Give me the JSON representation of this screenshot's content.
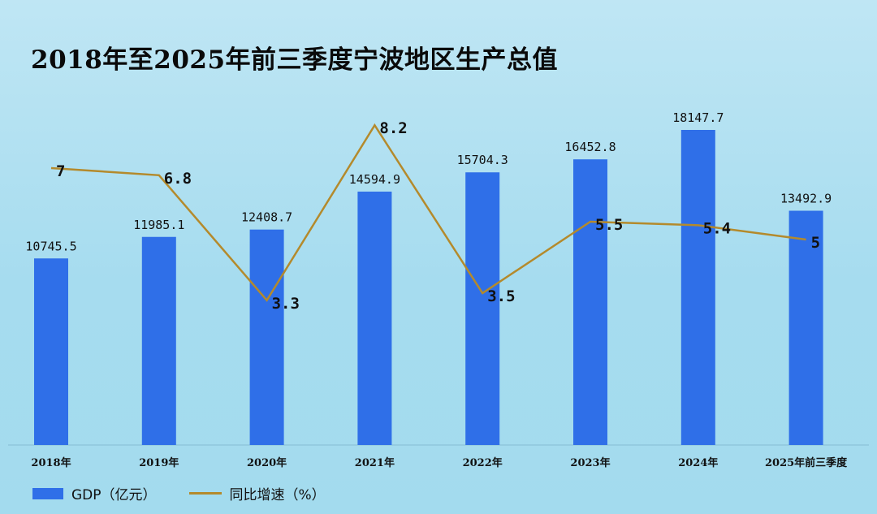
{
  "chart_data": {
    "type": "bar",
    "title": "2018年至2025年前三季度宁波地区生产总值",
    "categories": [
      "2018年",
      "2019年",
      "2020年",
      "2021年",
      "2022年",
      "2023年",
      "2024年",
      "2025年前三季度"
    ],
    "series": [
      {
        "name": "GDP（亿元）",
        "type": "bar",
        "color": "#2f6fe8",
        "values": [
          10745.5,
          11985.1,
          12408.7,
          14594.9,
          15704.3,
          16452.8,
          18147.7,
          13492.9
        ],
        "labels": [
          "10745.5",
          "11985.1",
          "12408.7",
          "14594.9",
          "15704.3",
          "16452.8",
          "18147.7",
          "13492.9"
        ]
      },
      {
        "name": "同比增速（%）",
        "type": "line",
        "color": "#b48a2c",
        "values": [
          7,
          6.8,
          3.3,
          8.2,
          3.5,
          5.5,
          5.4,
          5
        ],
        "labels": [
          "7",
          "6.8",
          "3.3",
          "8.2",
          "3.5",
          "5.5",
          "5.4",
          "5"
        ]
      }
    ],
    "legend_position": "bottom-left",
    "grid": false
  }
}
